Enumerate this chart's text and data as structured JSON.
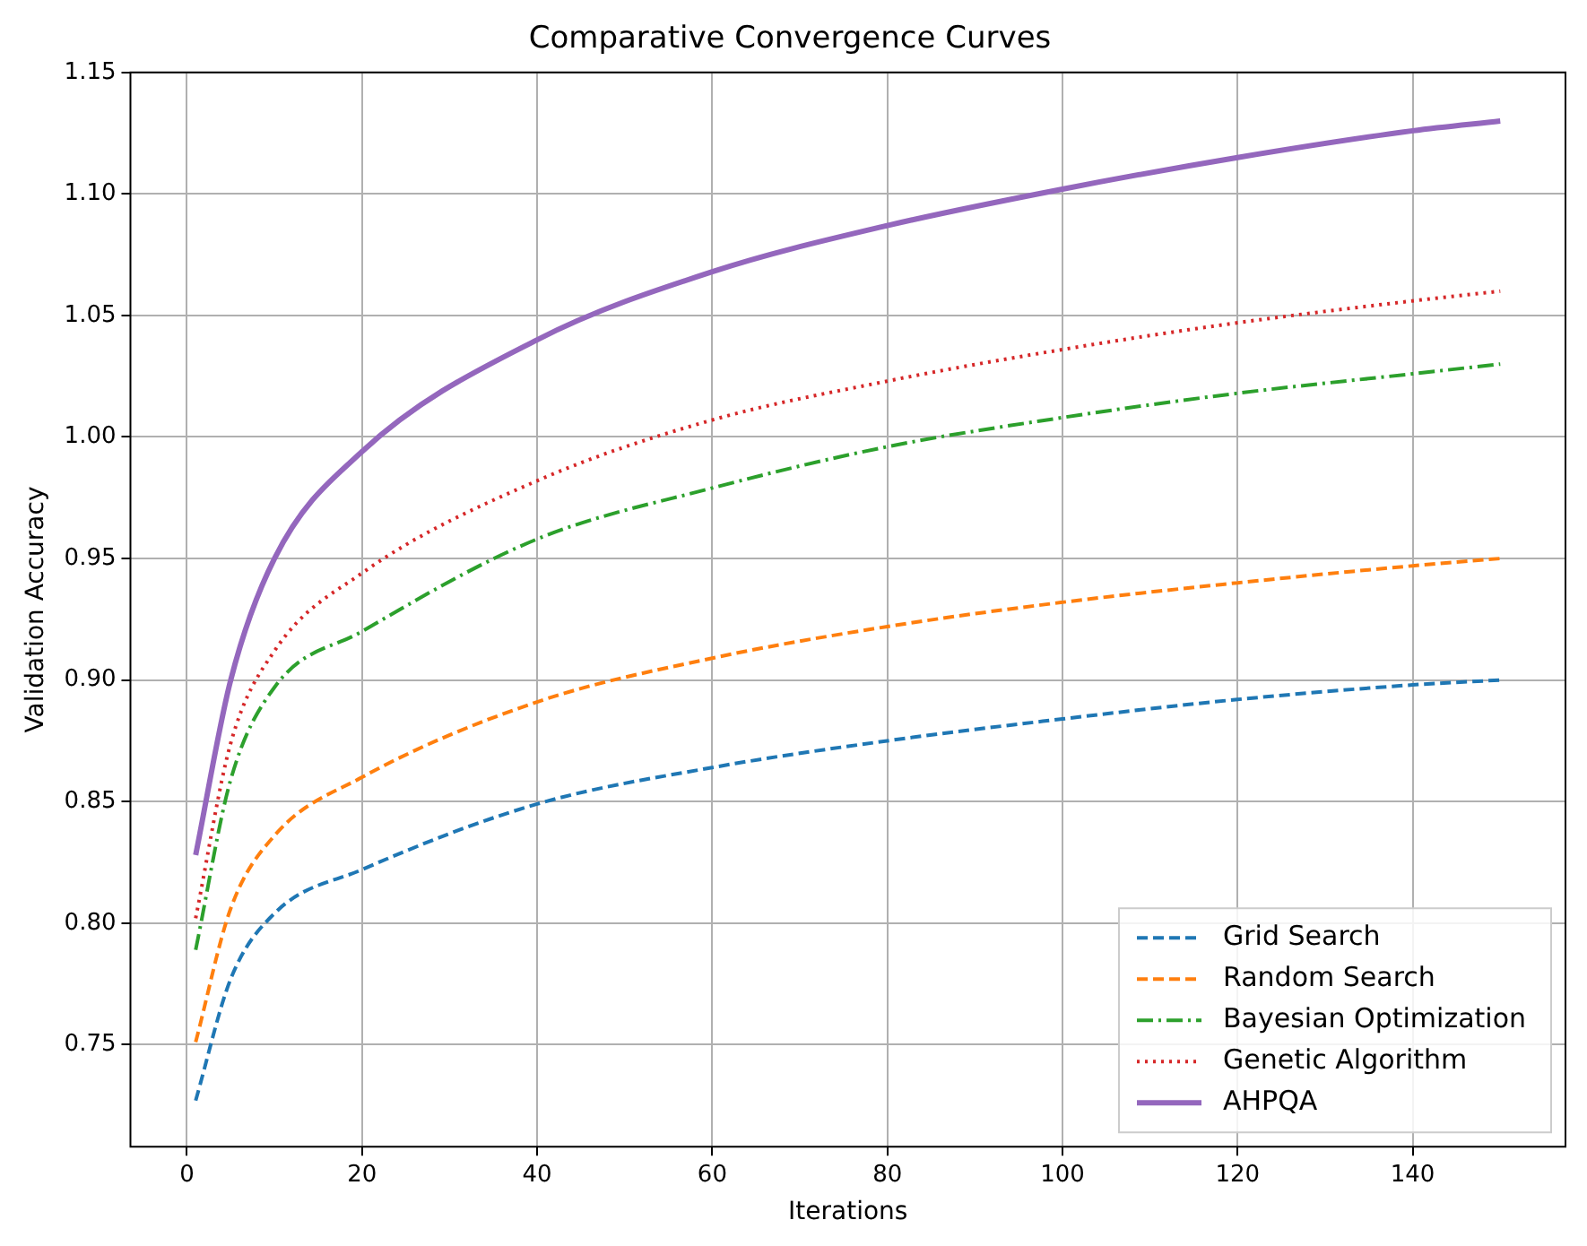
{
  "chart_data": {
    "type": "line",
    "title": "Comparative Convergence Curves",
    "xlabel": "Iterations",
    "ylabel": "Validation Accuracy",
    "xlim": [
      -6.45,
      157.45
    ],
    "xticks": [
      0,
      20,
      40,
      60,
      80,
      100,
      120,
      140
    ],
    "ylim": [
      0.708,
      1.15
    ],
    "yticks": [
      {
        "value": 0.75,
        "label": "0.75"
      },
      {
        "value": 0.8,
        "label": "0.80"
      },
      {
        "value": 0.85,
        "label": "0.85"
      },
      {
        "value": 0.9,
        "label": "0.90"
      },
      {
        "value": 0.95,
        "label": "0.95"
      },
      {
        "value": 1.0,
        "label": "1.00"
      },
      {
        "value": 1.05,
        "label": "1.05"
      },
      {
        "value": 1.1,
        "label": "1.10"
      },
      {
        "value": 1.15,
        "label": "1.15"
      }
    ],
    "grid": true,
    "legend": "bottom right",
    "series": [
      {
        "name": "Grid Search",
        "color": "#1f77b4",
        "line_style": "dashed",
        "x": [
          1,
          5,
          10,
          20,
          40,
          60,
          80,
          100,
          120,
          140,
          150
        ],
        "values": [
          0.727,
          0.777,
          0.804,
          0.822,
          0.849,
          0.864,
          0.875,
          0.884,
          0.892,
          0.898,
          0.9
        ]
      },
      {
        "name": "Random Search",
        "color": "#ff7f0e",
        "line_style": "dashed",
        "x": [
          1,
          5,
          10,
          20,
          40,
          60,
          80,
          100,
          120,
          140,
          150
        ],
        "values": [
          0.751,
          0.806,
          0.836,
          0.86,
          0.891,
          0.909,
          0.922,
          0.932,
          0.94,
          0.947,
          0.95
        ]
      },
      {
        "name": "Bayesian Optimization",
        "color": "#2ca02c",
        "line_style": "dashdot",
        "x": [
          1,
          5,
          10,
          20,
          40,
          60,
          80,
          100,
          120,
          140,
          150
        ],
        "values": [
          0.789,
          0.859,
          0.897,
          0.92,
          0.958,
          0.979,
          0.996,
          1.008,
          1.018,
          1.026,
          1.03
        ]
      },
      {
        "name": "Genetic Algorithm",
        "color": "#d62728",
        "line_style": "dotted",
        "x": [
          1,
          5,
          10,
          20,
          40,
          60,
          80,
          100,
          120,
          140,
          150
        ],
        "values": [
          0.802,
          0.874,
          0.912,
          0.944,
          0.982,
          1.007,
          1.023,
          1.036,
          1.047,
          1.056,
          1.06
        ]
      },
      {
        "name": "AHPQA",
        "color": "#9467bd",
        "line_style": "solid",
        "x": [
          1,
          5,
          10,
          20,
          40,
          60,
          80,
          100,
          120,
          140,
          150
        ],
        "values": [
          0.828,
          0.9,
          0.95,
          0.994,
          1.04,
          1.068,
          1.087,
          1.102,
          1.115,
          1.126,
          1.13
        ]
      }
    ]
  }
}
